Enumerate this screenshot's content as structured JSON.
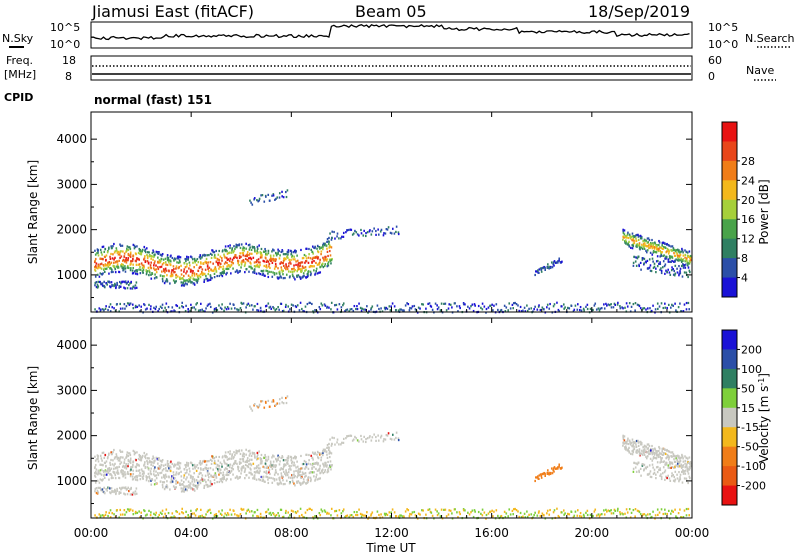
{
  "header": {
    "station": "Jiamusi East (fitACF)",
    "beam": "Beam 05",
    "date": "18/Sep/2019"
  },
  "noise_panel": {
    "left_label": "N.Sky",
    "right_label": "N.Search",
    "ticks_left": [
      "10^5",
      "10^0"
    ],
    "ticks_right": [
      "10^5",
      "10^0"
    ]
  },
  "freq_panel": {
    "left_label_1": "Freq.",
    "left_label_2": "[MHz]",
    "right_label": "Nave",
    "ticks_left": [
      "18",
      "8"
    ],
    "ticks_right": [
      "60",
      "0"
    ]
  },
  "cpid": {
    "label": "CPID",
    "value": "normal (fast) 151"
  },
  "colors": {
    "power": [
      "#1a12d6",
      "#2b4fa8",
      "#2f7f62",
      "#49a34a",
      "#a6cf3a",
      "#f3b81c",
      "#f07d18",
      "#e8461a",
      "#e81212"
    ],
    "velocity": [
      "#1a12d6",
      "#2b4fa8",
      "#2f7f62",
      "#7ecf3a",
      "#c8c8c0",
      "#f3b81c",
      "#f07d18",
      "#ea5a14",
      "#e81212"
    ]
  },
  "chart_data": [
    {
      "type": "heatmap",
      "name": "power",
      "ylabel": "Slant Range [km]",
      "xlabel": "",
      "x_ticks": [
        "00:00",
        "04:00",
        "08:00",
        "12:00",
        "16:00",
        "20:00",
        "00:00"
      ],
      "xlim_hours": [
        0,
        24
      ],
      "y_ticks": [
        1000,
        2000,
        3000,
        4000
      ],
      "ylim": [
        180,
        4600
      ],
      "colorbar": {
        "label": "Power [dB]",
        "ticks": [
          "4",
          "8",
          "12",
          "16",
          "20",
          "24",
          "28"
        ],
        "range": [
          0,
          32
        ]
      }
    },
    {
      "type": "heatmap",
      "name": "velocity",
      "ylabel": "Slant Range [km]",
      "xlabel": "Time UT",
      "x_ticks": [
        "00:00",
        "04:00",
        "08:00",
        "12:00",
        "16:00",
        "20:00",
        "00:00"
      ],
      "xlim_hours": [
        0,
        24
      ],
      "y_ticks": [
        1000,
        2000,
        3000,
        4000
      ],
      "ylim": [
        180,
        4600
      ],
      "colorbar": {
        "label_main": "Velocity [m s",
        "label_sup": "-1",
        "label_end": "]",
        "ticks": [
          "200",
          "100",
          "50",
          "15",
          "-15",
          "-50",
          "-100",
          "-200"
        ]
      }
    }
  ]
}
